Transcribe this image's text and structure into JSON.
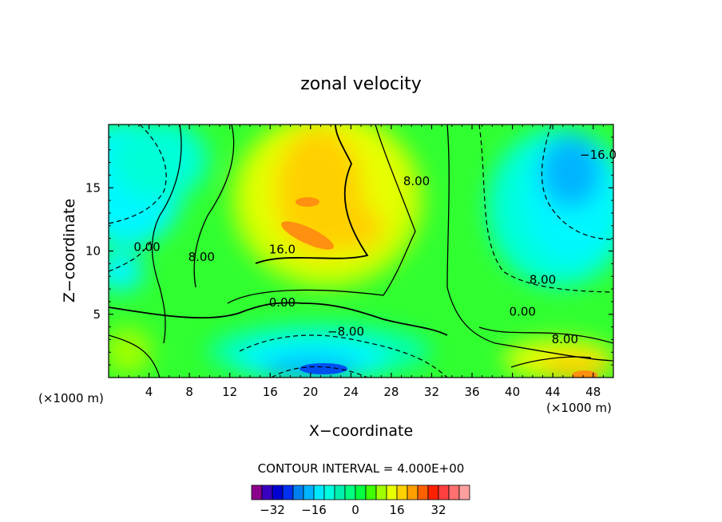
{
  "chart_data": {
    "type": "contour",
    "title": "zonal velocity",
    "xlabel": "X−coordinate",
    "ylabel": "Z−coordinate",
    "x_unit_left": "(×1000 m)",
    "x_unit_right": "(×1000 m)",
    "xlim": [
      0,
      50
    ],
    "ylim": [
      0,
      20
    ],
    "xticks": [
      4,
      8,
      12,
      16,
      20,
      24,
      28,
      32,
      36,
      40,
      44,
      48
    ],
    "xtick_labels": [
      "4",
      "8",
      "12",
      "16",
      "20",
      "24",
      "28",
      "32",
      "36",
      "40",
      "44",
      "48"
    ],
    "yticks": [
      5,
      10,
      15
    ],
    "ytick_labels": [
      "5",
      "10",
      "15"
    ],
    "contour_interval_text": "CONTOUR INTERVAL = 4.000E+00",
    "contour_interval": 4.0,
    "contour_labels": [
      {
        "text": "8.00",
        "x": 30.5,
        "y": 15.2
      },
      {
        "text": "−16.0",
        "x": 48.5,
        "y": 17.3
      },
      {
        "text": "0.00",
        "x": 3.8,
        "y": 10.0
      },
      {
        "text": "8.00",
        "x": 9.2,
        "y": 9.2
      },
      {
        "text": "16.0",
        "x": 17.2,
        "y": 9.8
      },
      {
        "text": "8.00",
        "x": 43.0,
        "y": 7.4
      },
      {
        "text": "0.00",
        "x": 17.2,
        "y": 5.6
      },
      {
        "text": "0.00",
        "x": 41.0,
        "y": 4.9
      },
      {
        "text": "−8.00",
        "x": 23.5,
        "y": 3.3
      },
      {
        "text": "8.00",
        "x": 45.2,
        "y": 2.7
      }
    ],
    "colorbar": {
      "tick_labels": [
        "−32",
        "−16",
        "0",
        "16",
        "32"
      ],
      "tick_values": [
        -32,
        -16,
        0,
        16,
        32
      ],
      "colors": [
        "#8b008b",
        "#3a00c0",
        "#0000d0",
        "#0030f0",
        "#0080f0",
        "#00b4ff",
        "#00e8ff",
        "#00ffe0",
        "#00f0b0",
        "#00ff80",
        "#00ff40",
        "#40ff00",
        "#a0ff00",
        "#e8ff00",
        "#ffd000",
        "#ffa000",
        "#ff6000",
        "#ff2000",
        "#ff4040",
        "#ff7070",
        "#ffa0a0"
      ]
    },
    "grid": false
  }
}
